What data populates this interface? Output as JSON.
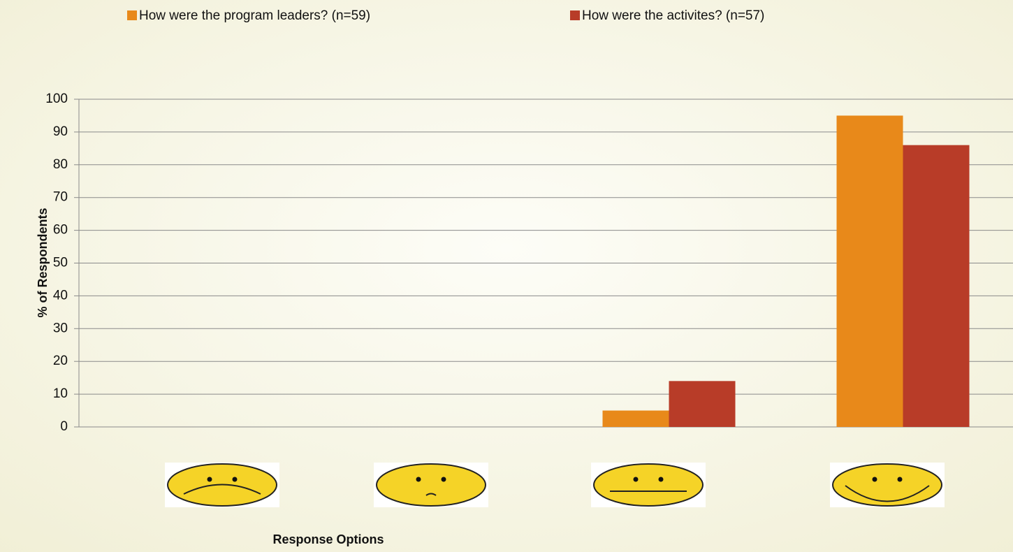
{
  "chart_data": {
    "type": "bar",
    "y_axis_label": "% of Respondents",
    "x_axis_label": "Response Options",
    "categories": [
      null,
      null,
      null,
      null
    ],
    "series": [
      {
        "name": "How were the program leaders? (n=59)",
        "color": "#e8891a",
        "values": [
          0,
          0,
          5,
          95
        ]
      },
      {
        "name": "How were the activites? (n=57)",
        "color": "#b83c28",
        "values": [
          0,
          0,
          14,
          86
        ]
      }
    ],
    "ylim": [
      0,
      100
    ],
    "yticks": [
      0,
      10,
      20,
      30,
      40,
      50,
      60,
      70,
      80,
      90,
      100
    ],
    "grid": true,
    "legend": "top"
  }
}
